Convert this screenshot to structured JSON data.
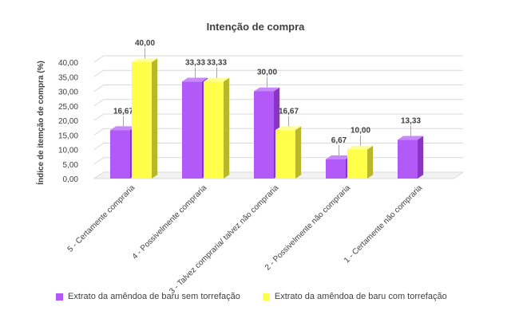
{
  "colors": {
    "series1": "#b15af7",
    "series1_dark": "#8a34c7",
    "series1_top": "#c98af9",
    "series2": "#ffff4a",
    "series2_dark": "#b8b82a",
    "series2_top": "#ffff99",
    "grid": "#d9d9d9",
    "text": "#404040"
  },
  "chart_data": {
    "type": "bar",
    "title": "Intenção de compra",
    "ylabel": "Índice de itemção de compra (%)",
    "xlabel": "",
    "ylim": [
      0,
      40
    ],
    "yticks": [
      "0,00",
      "5,00",
      "10,00",
      "15,00",
      "20,00",
      "25,00",
      "30,00",
      "35,00",
      "40,00"
    ],
    "categories": [
      "5 - Certamente compraria",
      "4 - Possivelmente compraria",
      "3 - Talvez compraria/ talvez não compraria",
      "2 - Possivelmente não compraria",
      "1 - Certamente não compraria"
    ],
    "series": [
      {
        "name": "Extrato da amêndoa de baru sem torrefação",
        "values": [
          16.67,
          33.33,
          30.0,
          6.67,
          13.33
        ],
        "labels": [
          "16,67",
          "33,33",
          "30,00",
          "6,67",
          "13,33"
        ]
      },
      {
        "name": "Extrato da amêndoa de baru com torrefação",
        "values": [
          40.0,
          33.33,
          16.67,
          10.0,
          null
        ],
        "labels": [
          "40,00",
          "33,33",
          "16,67",
          "10,00",
          ""
        ]
      }
    ],
    "grid": true,
    "legend": "bottom"
  }
}
